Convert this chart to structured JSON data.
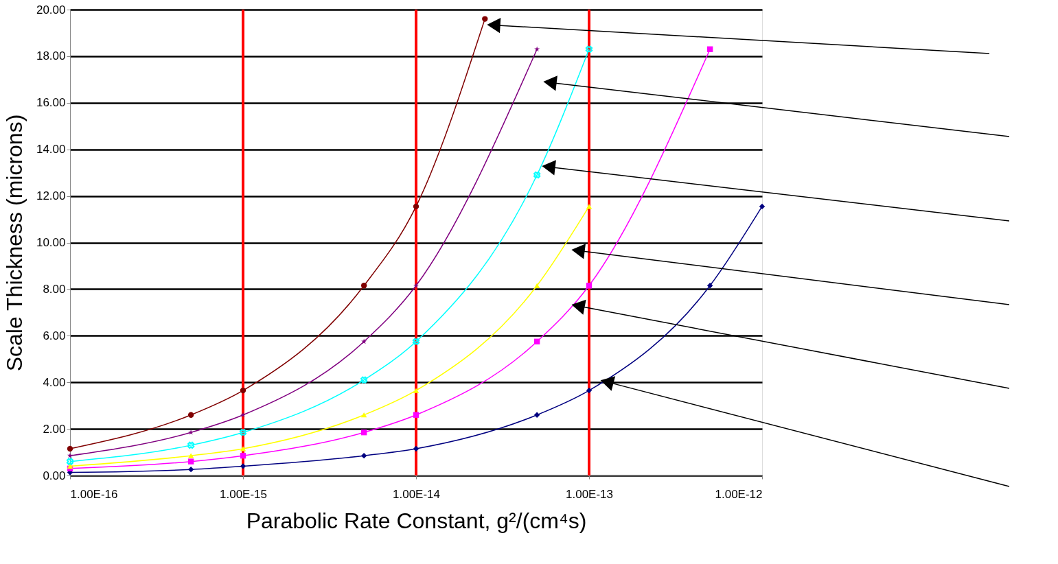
{
  "chart_data": {
    "type": "line",
    "xlabel": "Parabolic Rate Constant, g²/(cm⁴s)",
    "ylabel": "Scale Thickness (microns)",
    "x": [
      1e-16,
      5e-16,
      1e-15,
      5e-15,
      1e-14,
      5e-14,
      1e-13,
      5e-13,
      1e-12
    ],
    "series": [
      {
        "color": "#000080",
        "marker": "diamond",
        "values": [
          0.13,
          0.26,
          0.4,
          0.85,
          1.15,
          2.6,
          3.65,
          8.15,
          11.55
        ]
      },
      {
        "color": "#ff00ff",
        "marker": "square",
        "values": [
          0.3,
          0.6,
          0.85,
          1.85,
          2.6,
          5.75,
          8.15,
          18.3,
          null
        ]
      },
      {
        "color": "#ffff00",
        "marker": "triangle",
        "values": [
          0.4,
          0.85,
          1.15,
          2.6,
          3.65,
          8.15,
          11.55,
          null,
          null
        ]
      },
      {
        "color": "#00ffff",
        "marker": "cross",
        "values": [
          0.6,
          1.3,
          1.85,
          4.1,
          5.75,
          12.9,
          18.3,
          null,
          null
        ]
      },
      {
        "color": "#800080",
        "marker": "star",
        "values": [
          0.85,
          1.85,
          2.6,
          5.75,
          8.15,
          18.3,
          null,
          null,
          null
        ]
      },
      {
        "color": "#800000",
        "marker": "circle",
        "x": [
          1e-16,
          5e-16,
          1e-15,
          5e-15,
          1e-14,
          2.5e-14
        ],
        "values": [
          1.15,
          2.6,
          3.65,
          8.15,
          11.55,
          19.6
        ]
      }
    ],
    "log": "x",
    "xlim": [
      1e-16,
      1e-12
    ],
    "xticks": [
      {
        "value": 1e-16,
        "label": "1.00E-16"
      },
      {
        "value": 1e-15,
        "label": "1.00E-15"
      },
      {
        "value": 1e-14,
        "label": "1.00E-14"
      },
      {
        "value": 1e-13,
        "label": "1.00E-13"
      },
      {
        "value": 1e-12,
        "label": "1.00E-12"
      }
    ],
    "ylim": [
      0,
      20
    ],
    "yticks": [
      {
        "value": 0,
        "label": "0.00"
      },
      {
        "value": 2,
        "label": "2.00"
      },
      {
        "value": 4,
        "label": "4.00"
      },
      {
        "value": 6,
        "label": "6.00"
      },
      {
        "value": 8,
        "label": "8.00"
      },
      {
        "value": 10,
        "label": "10.00"
      },
      {
        "value": 12,
        "label": "12.00"
      },
      {
        "value": 14,
        "label": "14.00"
      },
      {
        "value": 16,
        "label": "16.00"
      },
      {
        "value": 18,
        "label": "18.00"
      },
      {
        "value": 20,
        "label": "20.00"
      }
    ],
    "grid": "y",
    "ref_lines": [
      {
        "axis": "x",
        "value": 1e-15,
        "color": "#ff0000"
      },
      {
        "axis": "x",
        "value": 1e-14,
        "color": "#ff0000"
      },
      {
        "axis": "x",
        "value": 1e-13,
        "color": "#ff0000"
      }
    ]
  }
}
